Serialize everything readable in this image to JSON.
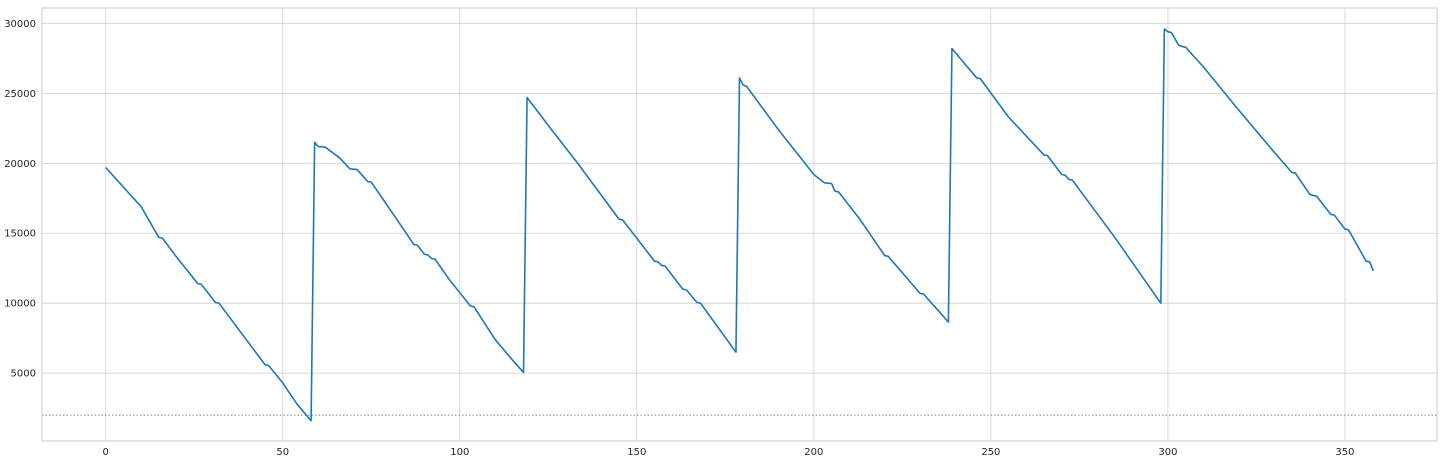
{
  "chart_data": {
    "type": "line",
    "title": "",
    "xlabel": "",
    "ylabel": "",
    "xlim": [
      -18,
      376
    ],
    "ylim": [
      150,
      31100
    ],
    "xticks": [
      0,
      50,
      100,
      150,
      200,
      250,
      300,
      350
    ],
    "yticks": [
      5000,
      10000,
      15000,
      20000,
      25000,
      30000
    ],
    "xtick_labels": [
      "0",
      "50",
      "100",
      "150",
      "200",
      "250",
      "300",
      "350"
    ],
    "ytick_labels": [
      "5000",
      "10000",
      "15000",
      "20000",
      "25000",
      "30000"
    ],
    "grid": true,
    "legend": "none",
    "reference_line": {
      "y": 2000,
      "style": "dotted",
      "color": "#808080"
    },
    "series": [
      {
        "color": "#1f77b4",
        "points": [
          [
            0,
            19700
          ],
          [
            5,
            18300
          ],
          [
            10,
            16900
          ],
          [
            15,
            14700
          ],
          [
            16,
            14650
          ],
          [
            20,
            13300
          ],
          [
            26,
            11400
          ],
          [
            27,
            11350
          ],
          [
            31,
            10050
          ],
          [
            32,
            10000
          ],
          [
            45,
            5600
          ],
          [
            46,
            5550
          ],
          [
            50,
            4300
          ],
          [
            54,
            2800
          ],
          [
            58,
            1600
          ],
          [
            59,
            21500
          ],
          [
            60,
            21200
          ],
          [
            62,
            21150
          ],
          [
            66,
            20400
          ],
          [
            69,
            19600
          ],
          [
            71,
            19550
          ],
          [
            74,
            18700
          ],
          [
            75,
            18650
          ],
          [
            83,
            15700
          ],
          [
            87,
            14200
          ],
          [
            88,
            14150
          ],
          [
            90,
            13500
          ],
          [
            91,
            13450
          ],
          [
            92,
            13200
          ],
          [
            93,
            13150
          ],
          [
            97,
            11700
          ],
          [
            103,
            9800
          ],
          [
            104,
            9750
          ],
          [
            110,
            7400
          ],
          [
            115,
            5900
          ],
          [
            118,
            5050
          ],
          [
            119,
            24700
          ],
          [
            125,
            22700
          ],
          [
            133,
            20100
          ],
          [
            145,
            16000
          ],
          [
            146,
            15950
          ],
          [
            155,
            13000
          ],
          [
            156,
            12950
          ],
          [
            157,
            12700
          ],
          [
            158,
            12650
          ],
          [
            163,
            11000
          ],
          [
            164,
            10950
          ],
          [
            167,
            10050
          ],
          [
            168,
            10000
          ],
          [
            178,
            6500
          ],
          [
            179,
            26100
          ],
          [
            180,
            25600
          ],
          [
            181,
            25500
          ],
          [
            190,
            22400
          ],
          [
            200,
            19200
          ],
          [
            203,
            18600
          ],
          [
            205,
            18550
          ],
          [
            206,
            18000
          ],
          [
            207,
            17950
          ],
          [
            213,
            16000
          ],
          [
            220,
            13400
          ],
          [
            221,
            13350
          ],
          [
            230,
            10700
          ],
          [
            231,
            10650
          ],
          [
            238,
            8650
          ],
          [
            239,
            28200
          ],
          [
            243,
            27000
          ],
          [
            246,
            26100
          ],
          [
            247,
            26050
          ],
          [
            255,
            23300
          ],
          [
            265,
            20600
          ],
          [
            266,
            20550
          ],
          [
            270,
            19200
          ],
          [
            271,
            19150
          ],
          [
            272,
            18850
          ],
          [
            273,
            18800
          ],
          [
            285,
            14700
          ],
          [
            298,
            10000
          ],
          [
            299,
            29600
          ],
          [
            300,
            29400
          ],
          [
            301,
            29350
          ],
          [
            303,
            28450
          ],
          [
            304,
            28350
          ],
          [
            305,
            28300
          ],
          [
            310,
            26900
          ],
          [
            320,
            23800
          ],
          [
            330,
            20800
          ],
          [
            335,
            19350
          ],
          [
            336,
            19300
          ],
          [
            340,
            17800
          ],
          [
            341,
            17700
          ],
          [
            342,
            17650
          ],
          [
            346,
            16350
          ],
          [
            347,
            16300
          ],
          [
            350,
            15300
          ],
          [
            351,
            15250
          ],
          [
            356,
            13000
          ],
          [
            357,
            12950
          ],
          [
            358,
            12300
          ]
        ]
      }
    ]
  }
}
